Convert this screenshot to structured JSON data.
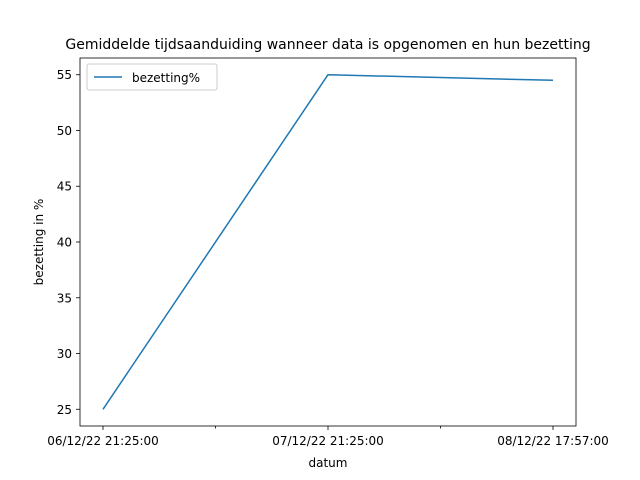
{
  "chart_data": {
    "type": "line",
    "title": "Gemiddelde tijdsaanduiding wanneer data is opgenomen en hun bezetting",
    "xlabel": "datum",
    "ylabel": "bezetting in %",
    "categories": [
      "06/12/22 21:25:00",
      "07/12/22 21:25:00",
      "08/12/22 17:57:00"
    ],
    "series": [
      {
        "name": "bezetting%",
        "values": [
          25.0,
          55.0,
          54.5
        ],
        "color": "#1f77b4"
      }
    ],
    "ylim": [
      23.5,
      56.5
    ],
    "yticks": [
      25,
      30,
      35,
      40,
      45,
      50,
      55
    ],
    "grid": false,
    "legend": "top-left"
  }
}
